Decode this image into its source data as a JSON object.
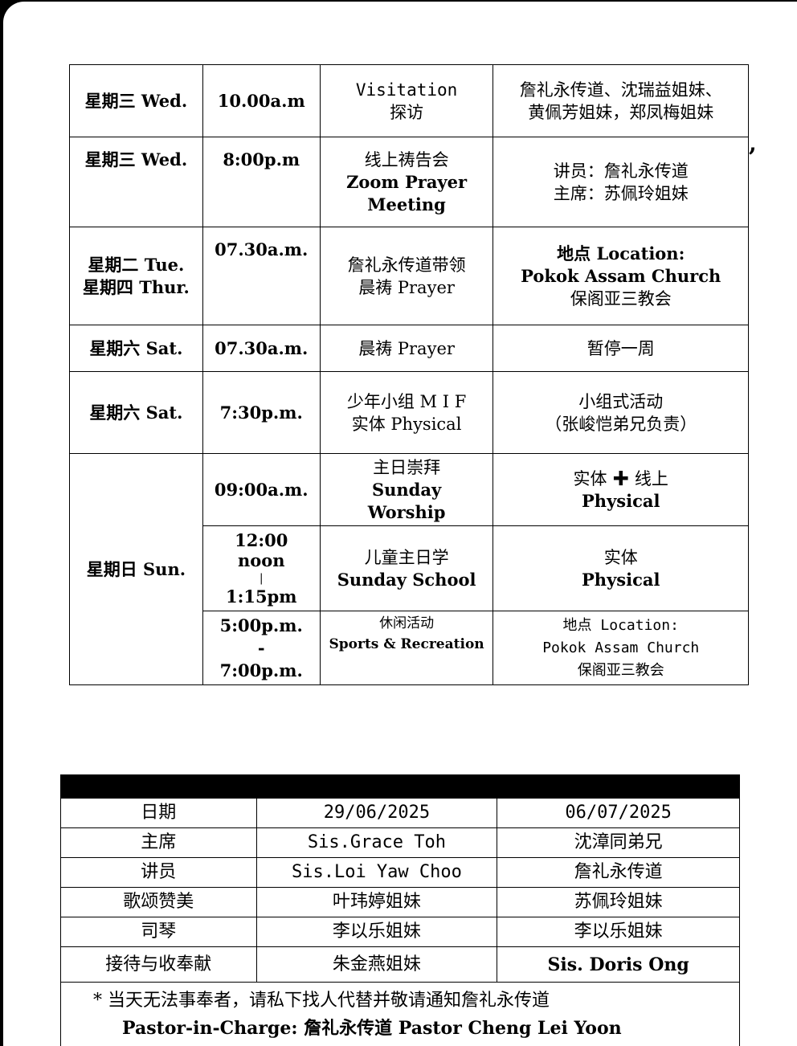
{
  "schedule": {
    "rows": [
      {
        "day": "星期三 Wed.",
        "time": "10.00a.m",
        "activity_1": "Visitation",
        "activity_2": "探访",
        "detail_1": "詹礼永传道、沈瑞益姐妹、",
        "detail_2": "黄佩芳姐妹，郑凤梅姐妹"
      },
      {
        "day": "星期三 Wed.",
        "time": "8:00p.m",
        "activity_1": "线上祷告会",
        "activity_2": "Zoom  Prayer",
        "activity_3": "Meeting",
        "detail_1": "讲员：詹礼永传道",
        "detail_2": "主席：苏佩玲姐妹"
      },
      {
        "day_1": "星期二 Tue.",
        "day_2": "星期四 Thur.",
        "time": "07.30a.m.",
        "activity_1": "詹礼永传道带领",
        "activity_2": "晨祷 Prayer",
        "detail_1": "地点  Location:",
        "detail_2": "Pokok Assam Church",
        "detail_3": "保阁亚三教会"
      },
      {
        "day": "星期六 Sat.",
        "time": "07.30a.m.",
        "activity_1": "晨祷 Prayer",
        "detail_1": "暂停一周"
      },
      {
        "day": "星期六 Sat.",
        "time": "7:30p.m.",
        "activity_1": "少年小组  M I F",
        "activity_2": "实体 Physical",
        "detail_1": "小组式活动",
        "detail_2": "（张峻恺弟兄负责）"
      },
      {
        "day": "星期日 Sun.",
        "time": "09:00a.m.",
        "activity_1": "主日崇拜",
        "activity_2": "Sunday",
        "activity_3": "Worship",
        "detail_1": "实体  ✚  线上",
        "detail_2": "Physical"
      },
      {
        "time_1": "12:00",
        "time_2": "noon",
        "time_3": "|",
        "time_4": "1:15pm",
        "activity_1": "儿童主日学",
        "activity_2": "Sunday School",
        "detail_1": "实体",
        "detail_2": "Physical"
      },
      {
        "time_1": "5:00p.m.",
        "time_2": "-",
        "time_3": "7:00p.m.",
        "activity_1": "休闲活动",
        "activity_2": "Sports & Recreation",
        "detail_1": "地点 Location:",
        "detail_2": "Pokok Assam Church",
        "detail_3": "保阁亚三教会"
      }
    ],
    "trailing_mark": ","
  },
  "duty_roster": {
    "rows": [
      {
        "label": "日期",
        "col1": "29/06/2025",
        "col2": "06/07/2025"
      },
      {
        "label": "主席",
        "col1": "Sis.Grace Toh",
        "col2": "沈漳同弟兄"
      },
      {
        "label": "讲员",
        "col1": "Sis.Loi Yaw Choo",
        "col2": "詹礼永传道"
      },
      {
        "label": "歌颂赞美",
        "col1": "叶玮婷姐妹",
        "col2": "苏佩玲姐妹"
      },
      {
        "label": "司琴",
        "col1": "李以乐姐妹",
        "col2": "李以乐姐妹"
      },
      {
        "label": "接待与收奉献",
        "col1": "朱金燕姐妹",
        "col2": "Sis. Doris Ong"
      }
    ],
    "note": "*  当天无法事奉者，请私下找人代替并敬请通知詹礼永传道",
    "pastor": "Pastor-in-Charge:  詹礼永传道  Pastor Cheng Lei Yoon"
  }
}
